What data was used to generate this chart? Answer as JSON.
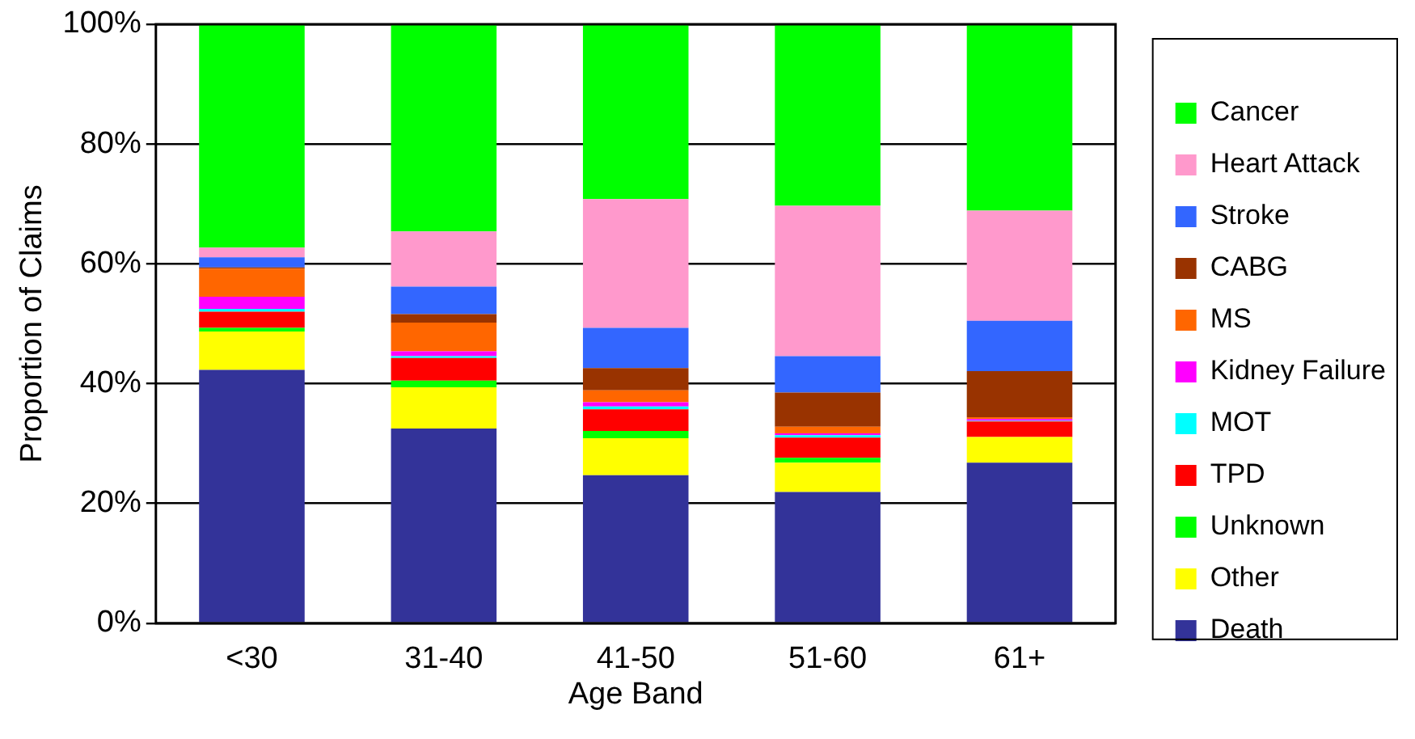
{
  "chart_data": {
    "type": "bar",
    "stacked": true,
    "xlabel": "Age Band",
    "ylabel": "Proportion of Claims",
    "categories": [
      "<30",
      "31-40",
      "41-50",
      "51-60",
      "61+"
    ],
    "ylim": [
      0,
      100
    ],
    "yticks": [
      {
        "value": 0,
        "label": "0%"
      },
      {
        "value": 20,
        "label": "20%"
      },
      {
        "value": 40,
        "label": "40%"
      },
      {
        "value": 60,
        "label": "60%"
      },
      {
        "value": 80,
        "label": "80%"
      },
      {
        "value": 100,
        "label": "100%"
      }
    ],
    "grid": "y",
    "legend": "right",
    "series": [
      {
        "name": "Death",
        "color": "#333399",
        "values": [
          42.3,
          32.5,
          24.7,
          21.9,
          26.8
        ]
      },
      {
        "name": "Other",
        "color": "#ffff00",
        "values": [
          6.4,
          6.9,
          6.2,
          4.9,
          4.3
        ]
      },
      {
        "name": "Unknown",
        "color": "#00ff00",
        "values": [
          0.6,
          1.1,
          1.2,
          0.8,
          0
        ]
      },
      {
        "name": "TPD",
        "color": "#ff0000",
        "values": [
          2.7,
          3.8,
          3.6,
          3.4,
          2.6
        ]
      },
      {
        "name": "MOT",
        "color": "#00ffff",
        "values": [
          0.5,
          0.3,
          0.5,
          0.4,
          0.1
        ]
      },
      {
        "name": "Kidney Failure",
        "color": "#ff00ff",
        "values": [
          2.0,
          0.8,
          0.7,
          0.3,
          0.3
        ]
      },
      {
        "name": "MS",
        "color": "#ff6600",
        "values": [
          4.7,
          4.8,
          2.0,
          1.1,
          0.3
        ]
      },
      {
        "name": "CABG",
        "color": "#993300",
        "values": [
          0.2,
          1.4,
          3.7,
          5.7,
          7.7
        ]
      },
      {
        "name": "Stroke",
        "color": "#3366ff",
        "values": [
          1.7,
          4.6,
          6.7,
          6.1,
          8.4
        ]
      },
      {
        "name": "Heart Attack",
        "color": "#ff99cc",
        "values": [
          1.6,
          9.2,
          21.5,
          25.1,
          18.4
        ]
      },
      {
        "name": "Cancer",
        "color": "#00ff00",
        "values": [
          37.3,
          34.6,
          29.2,
          30.2,
          31.1
        ]
      }
    ]
  }
}
